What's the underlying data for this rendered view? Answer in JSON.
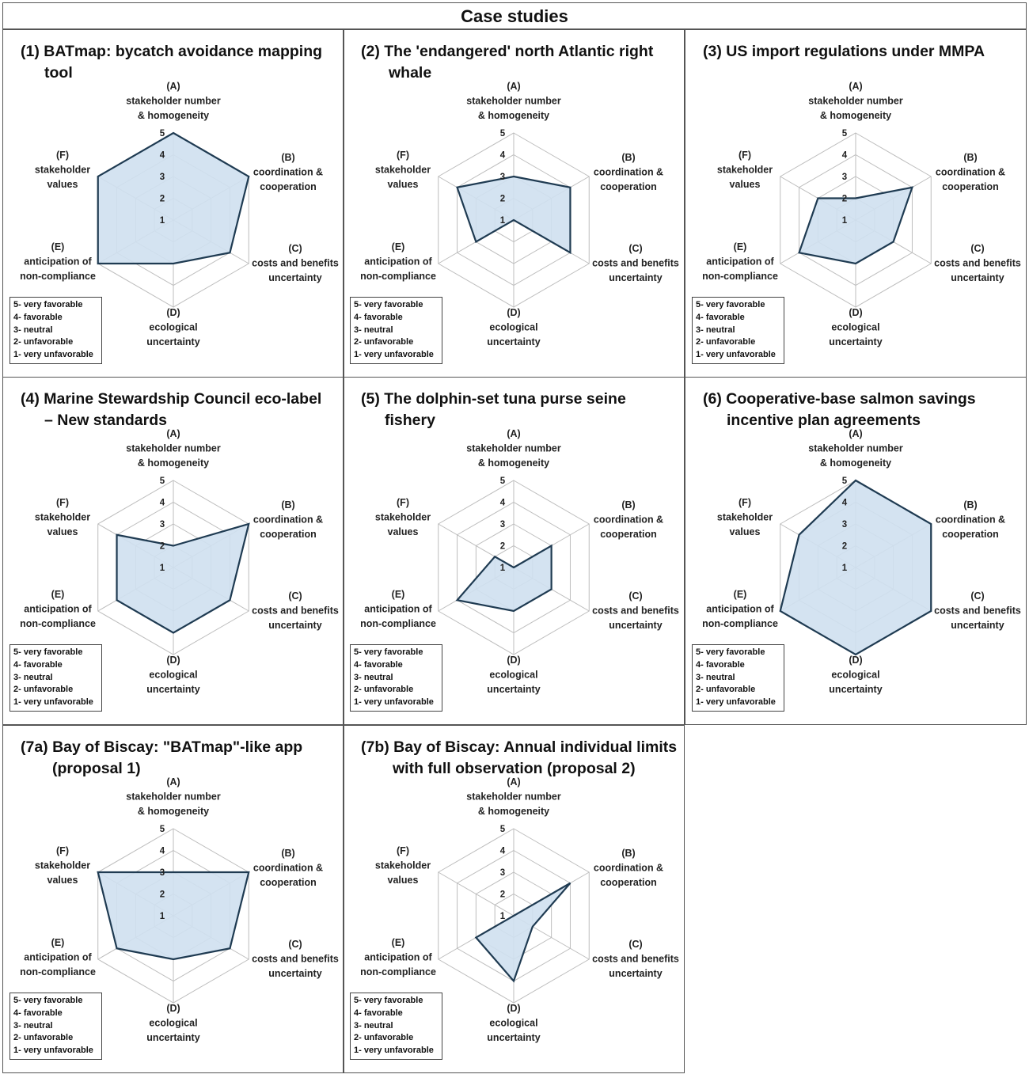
{
  "title": "Case studies",
  "axes": [
    [
      "(A)",
      "stakeholder number",
      "& homogeneity"
    ],
    [
      "(B)",
      "coordination &",
      "cooperation"
    ],
    [
      "(C)",
      "costs and benefits",
      "uncertainty"
    ],
    [
      "(D)",
      "ecological",
      "uncertainty"
    ],
    [
      "(E)",
      "anticipation of",
      "non-compliance"
    ],
    [
      "(F)",
      "stakeholder",
      "values"
    ]
  ],
  "legend": [
    "5- very favorable",
    "4- favorable",
    "3- neutral",
    "2- unfavorable",
    "1- very unfavorable"
  ],
  "colors": {
    "fill": "#cfe0ef",
    "stroke": "#1f3b52",
    "grid": "#bdbdbd"
  },
  "chart_data": [
    {
      "type": "radar",
      "title": [
        "(1) BATmap: bycatch avoidance mapping",
        "tool"
      ],
      "categories": [
        "A",
        "B",
        "C",
        "D",
        "E",
        "F"
      ],
      "values": [
        5,
        5,
        4,
        3,
        5,
        5
      ],
      "rlim": [
        1,
        5
      ],
      "ticks": [
        "1",
        "2",
        "3",
        "4",
        "5"
      ]
    },
    {
      "type": "radar",
      "title": [
        "(2) The 'endangered' north Atlantic right",
        "whale"
      ],
      "categories": [
        "A",
        "B",
        "C",
        "D",
        "E",
        "F"
      ],
      "values": [
        3,
        4,
        4,
        1,
        3,
        4
      ],
      "rlim": [
        1,
        5
      ],
      "ticks": [
        "1",
        "2",
        "3",
        "4",
        "5"
      ]
    },
    {
      "type": "radar",
      "title": [
        "(3) US import regulations under MMPA",
        ""
      ],
      "categories": [
        "A",
        "B",
        "C",
        "D",
        "E",
        "F"
      ],
      "values": [
        2,
        4,
        3,
        3,
        4,
        3
      ],
      "rlim": [
        1,
        5
      ],
      "ticks": [
        "1",
        "2",
        "3",
        "4",
        "5"
      ]
    },
    {
      "type": "radar",
      "title": [
        "(4) Marine Stewardship Council eco-label",
        "– New standards"
      ],
      "categories": [
        "A",
        "B",
        "C",
        "D",
        "E",
        "F"
      ],
      "values": [
        2,
        5,
        4,
        4,
        4,
        4
      ],
      "rlim": [
        1,
        5
      ],
      "ticks": [
        "1",
        "2",
        "3",
        "4",
        "5"
      ]
    },
    {
      "type": "radar",
      "title": [
        "(5) The dolphin-set tuna purse seine",
        "fishery"
      ],
      "categories": [
        "A",
        "B",
        "C",
        "D",
        "E",
        "F"
      ],
      "values": [
        1,
        3,
        3,
        3,
        4,
        2
      ],
      "rlim": [
        1,
        5
      ],
      "ticks": [
        "1",
        "2",
        "3",
        "4",
        "5"
      ]
    },
    {
      "type": "radar",
      "title": [
        "(6) Cooperative-base salmon savings",
        "incentive plan agreements"
      ],
      "categories": [
        "A",
        "B",
        "C",
        "D",
        "E",
        "F"
      ],
      "values": [
        5,
        5,
        5,
        5,
        5,
        4
      ],
      "rlim": [
        1,
        5
      ],
      "ticks": [
        "1",
        "2",
        "3",
        "4",
        "5"
      ]
    },
    {
      "type": "radar",
      "title": [
        "(7a) Bay of Biscay: \"BATmap\"-like app",
        "(proposal 1)"
      ],
      "categories": [
        "A",
        "B",
        "C",
        "D",
        "E",
        "F"
      ],
      "values": [
        3,
        5,
        4,
        3,
        4,
        5
      ],
      "rlim": [
        1,
        5
      ],
      "ticks": [
        "1",
        "2",
        "3",
        "4",
        "5"
      ]
    },
    {
      "type": "radar",
      "title": [
        "(7b) Bay of Biscay: Annual individual limits",
        "with full observation (proposal 2)"
      ],
      "categories": [
        "A",
        "B",
        "C",
        "D",
        "E",
        "F"
      ],
      "values": [
        1,
        4,
        2,
        4,
        3,
        1
      ],
      "rlim": [
        1,
        5
      ],
      "ticks": [
        "1",
        "2",
        "3",
        "4",
        "5"
      ]
    }
  ]
}
